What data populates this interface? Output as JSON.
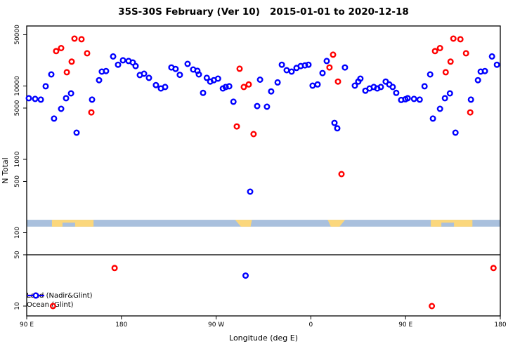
{
  "title": "35S-30S February (Ver 10)   2015-01-01 to 2020-12-18",
  "legend": {
    "items": [
      {
        "label": "Land (Nadir&Glint)",
        "color": "#ff0000"
      },
      {
        "label": "Ocean (Glint)",
        "color": "#0000ff"
      }
    ]
  },
  "chart_data": {
    "type": "scatter",
    "title": "35S-30S February (Ver 10)   2015-01-01 to 2020-12-18",
    "xlabel": "Longitude (deg E)",
    "ylabel": "N Total",
    "x_axis": {
      "tick_labels": [
        "90 E",
        "180",
        "90 W",
        "0",
        "90 E",
        "180"
      ],
      "start_lon_deg_e": 90,
      "span_deg": 450,
      "note": "longitude wraps eastward from 90E; points with lon 90E-180E are plotted at both ends"
    },
    "y_axis": {
      "scale": "log",
      "ticks": [
        {
          "label": "50000",
          "value": 50000
        },
        {
          "label": "10000",
          "value": 10000
        },
        {
          "label": "5000",
          "value": 5000
        },
        {
          "label": "1000",
          "value": 1000
        },
        {
          "label": "500",
          "value": 500
        },
        {
          "label": "100",
          "value": 100
        },
        {
          "label": "50",
          "value": 50
        },
        {
          "label": "10",
          "value": 10
        }
      ],
      "range": [
        9,
        60000
      ]
    },
    "reference_line_value": 50,
    "map_band": {
      "value_range": [
        121,
        150
      ],
      "ocean_color": "#a9c0dd",
      "land_color": "#fbd77c",
      "land_patches": [
        {
          "name": "australia",
          "lon": [
            114,
            153.5
          ],
          "notch": [
            124,
            136
          ]
        },
        {
          "name": "south-america",
          "lon": [
            288,
            304
          ],
          "taper_l": 0.35,
          "taper_r": 0.08
        },
        {
          "name": "south-africa",
          "lon": [
            16,
            32.5
          ],
          "taper_l": 0.18,
          "taper_r": 0.32
        }
      ]
    },
    "series": [
      {
        "name": "Land (Nadir&Glint)",
        "color": "#ff0000",
        "points": [
          [
            135.4,
            44300
          ],
          [
            142.1,
            43400
          ],
          [
            122.7,
            32900
          ],
          [
            118,
            29900
          ],
          [
            147.4,
            27900
          ],
          [
            132.7,
            21500
          ],
          [
            128.1,
            15400
          ],
          [
            151.4,
            4370
          ],
          [
            173.5,
            33
          ],
          [
            115,
            10
          ],
          [
            292.3,
            17200
          ],
          [
            296.3,
            9700
          ],
          [
            301,
            10500
          ],
          [
            289.6,
            2810
          ],
          [
            305.6,
            2210
          ],
          [
            21.1,
            26700
          ],
          [
            17.7,
            17900
          ],
          [
            25.8,
            11500
          ],
          [
            29.1,
            630
          ]
        ]
      },
      {
        "name": "Ocean (Glint)",
        "color": "#0000ff",
        "points": [
          [
            92,
            6820
          ],
          [
            98,
            6670
          ],
          [
            103.4,
            6520
          ],
          [
            108,
            9920
          ],
          [
            113.4,
            14400
          ],
          [
            116,
            3600
          ],
          [
            122.7,
            4890
          ],
          [
            127.4,
            6820
          ],
          [
            132.1,
            7940
          ],
          [
            137.4,
            2310
          ],
          [
            152.1,
            6520
          ],
          [
            158.8,
            12000
          ],
          [
            161.4,
            15700
          ],
          [
            165.4,
            16000
          ],
          [
            172.1,
            25300
          ],
          [
            176.8,
            19500
          ],
          [
            181.5,
            22400
          ],
          [
            186.8,
            21900
          ],
          [
            190.8,
            20900
          ],
          [
            193.5,
            18700
          ],
          [
            197.5,
            14100
          ],
          [
            201.5,
            14700
          ],
          [
            206.2,
            12900
          ],
          [
            212.8,
            10300
          ],
          [
            217.5,
            9260
          ],
          [
            221.5,
            9700
          ],
          [
            227.5,
            17900
          ],
          [
            231.5,
            17100
          ],
          [
            235.5,
            14200
          ],
          [
            242.9,
            20000
          ],
          [
            248.2,
            16800
          ],
          [
            252.2,
            16100
          ],
          [
            253.6,
            14400
          ],
          [
            257.6,
            8060
          ],
          [
            261.1,
            12900
          ],
          [
            264.4,
            11500
          ],
          [
            267.8,
            12000
          ],
          [
            271.8,
            12600
          ],
          [
            276.4,
            9260
          ],
          [
            279.1,
            9700
          ],
          [
            282.4,
            9910
          ],
          [
            286.4,
            6100
          ],
          [
            298,
            26
          ],
          [
            302.3,
            363
          ],
          [
            309,
            5330
          ],
          [
            311.7,
            12200
          ],
          [
            318.3,
            5220
          ],
          [
            322.3,
            8440
          ],
          [
            328.4,
            11200
          ],
          [
            332.4,
            19500
          ],
          [
            337,
            16400
          ],
          [
            341.7,
            15700
          ],
          [
            346.4,
            17600
          ],
          [
            350.4,
            18700
          ],
          [
            354.4,
            19100
          ],
          [
            357.7,
            19500
          ],
          [
            1.7,
            10100
          ],
          [
            6.4,
            10500
          ],
          [
            11.1,
            15000
          ],
          [
            15.1,
            21900
          ],
          [
            22.4,
            3140
          ],
          [
            25.1,
            2650
          ],
          [
            32.4,
            17900
          ],
          [
            41.8,
            10100
          ],
          [
            45.1,
            11500
          ],
          [
            47.1,
            12600
          ],
          [
            51.8,
            8630
          ],
          [
            55.8,
            9260
          ],
          [
            59.8,
            9700
          ],
          [
            63.1,
            9260
          ],
          [
            66.5,
            9700
          ],
          [
            71.1,
            11500
          ],
          [
            74.5,
            10500
          ],
          [
            77.8,
            9700
          ],
          [
            81.1,
            8060
          ],
          [
            85.8,
            6450
          ],
          [
            89.8,
            6600
          ]
        ]
      }
    ]
  }
}
